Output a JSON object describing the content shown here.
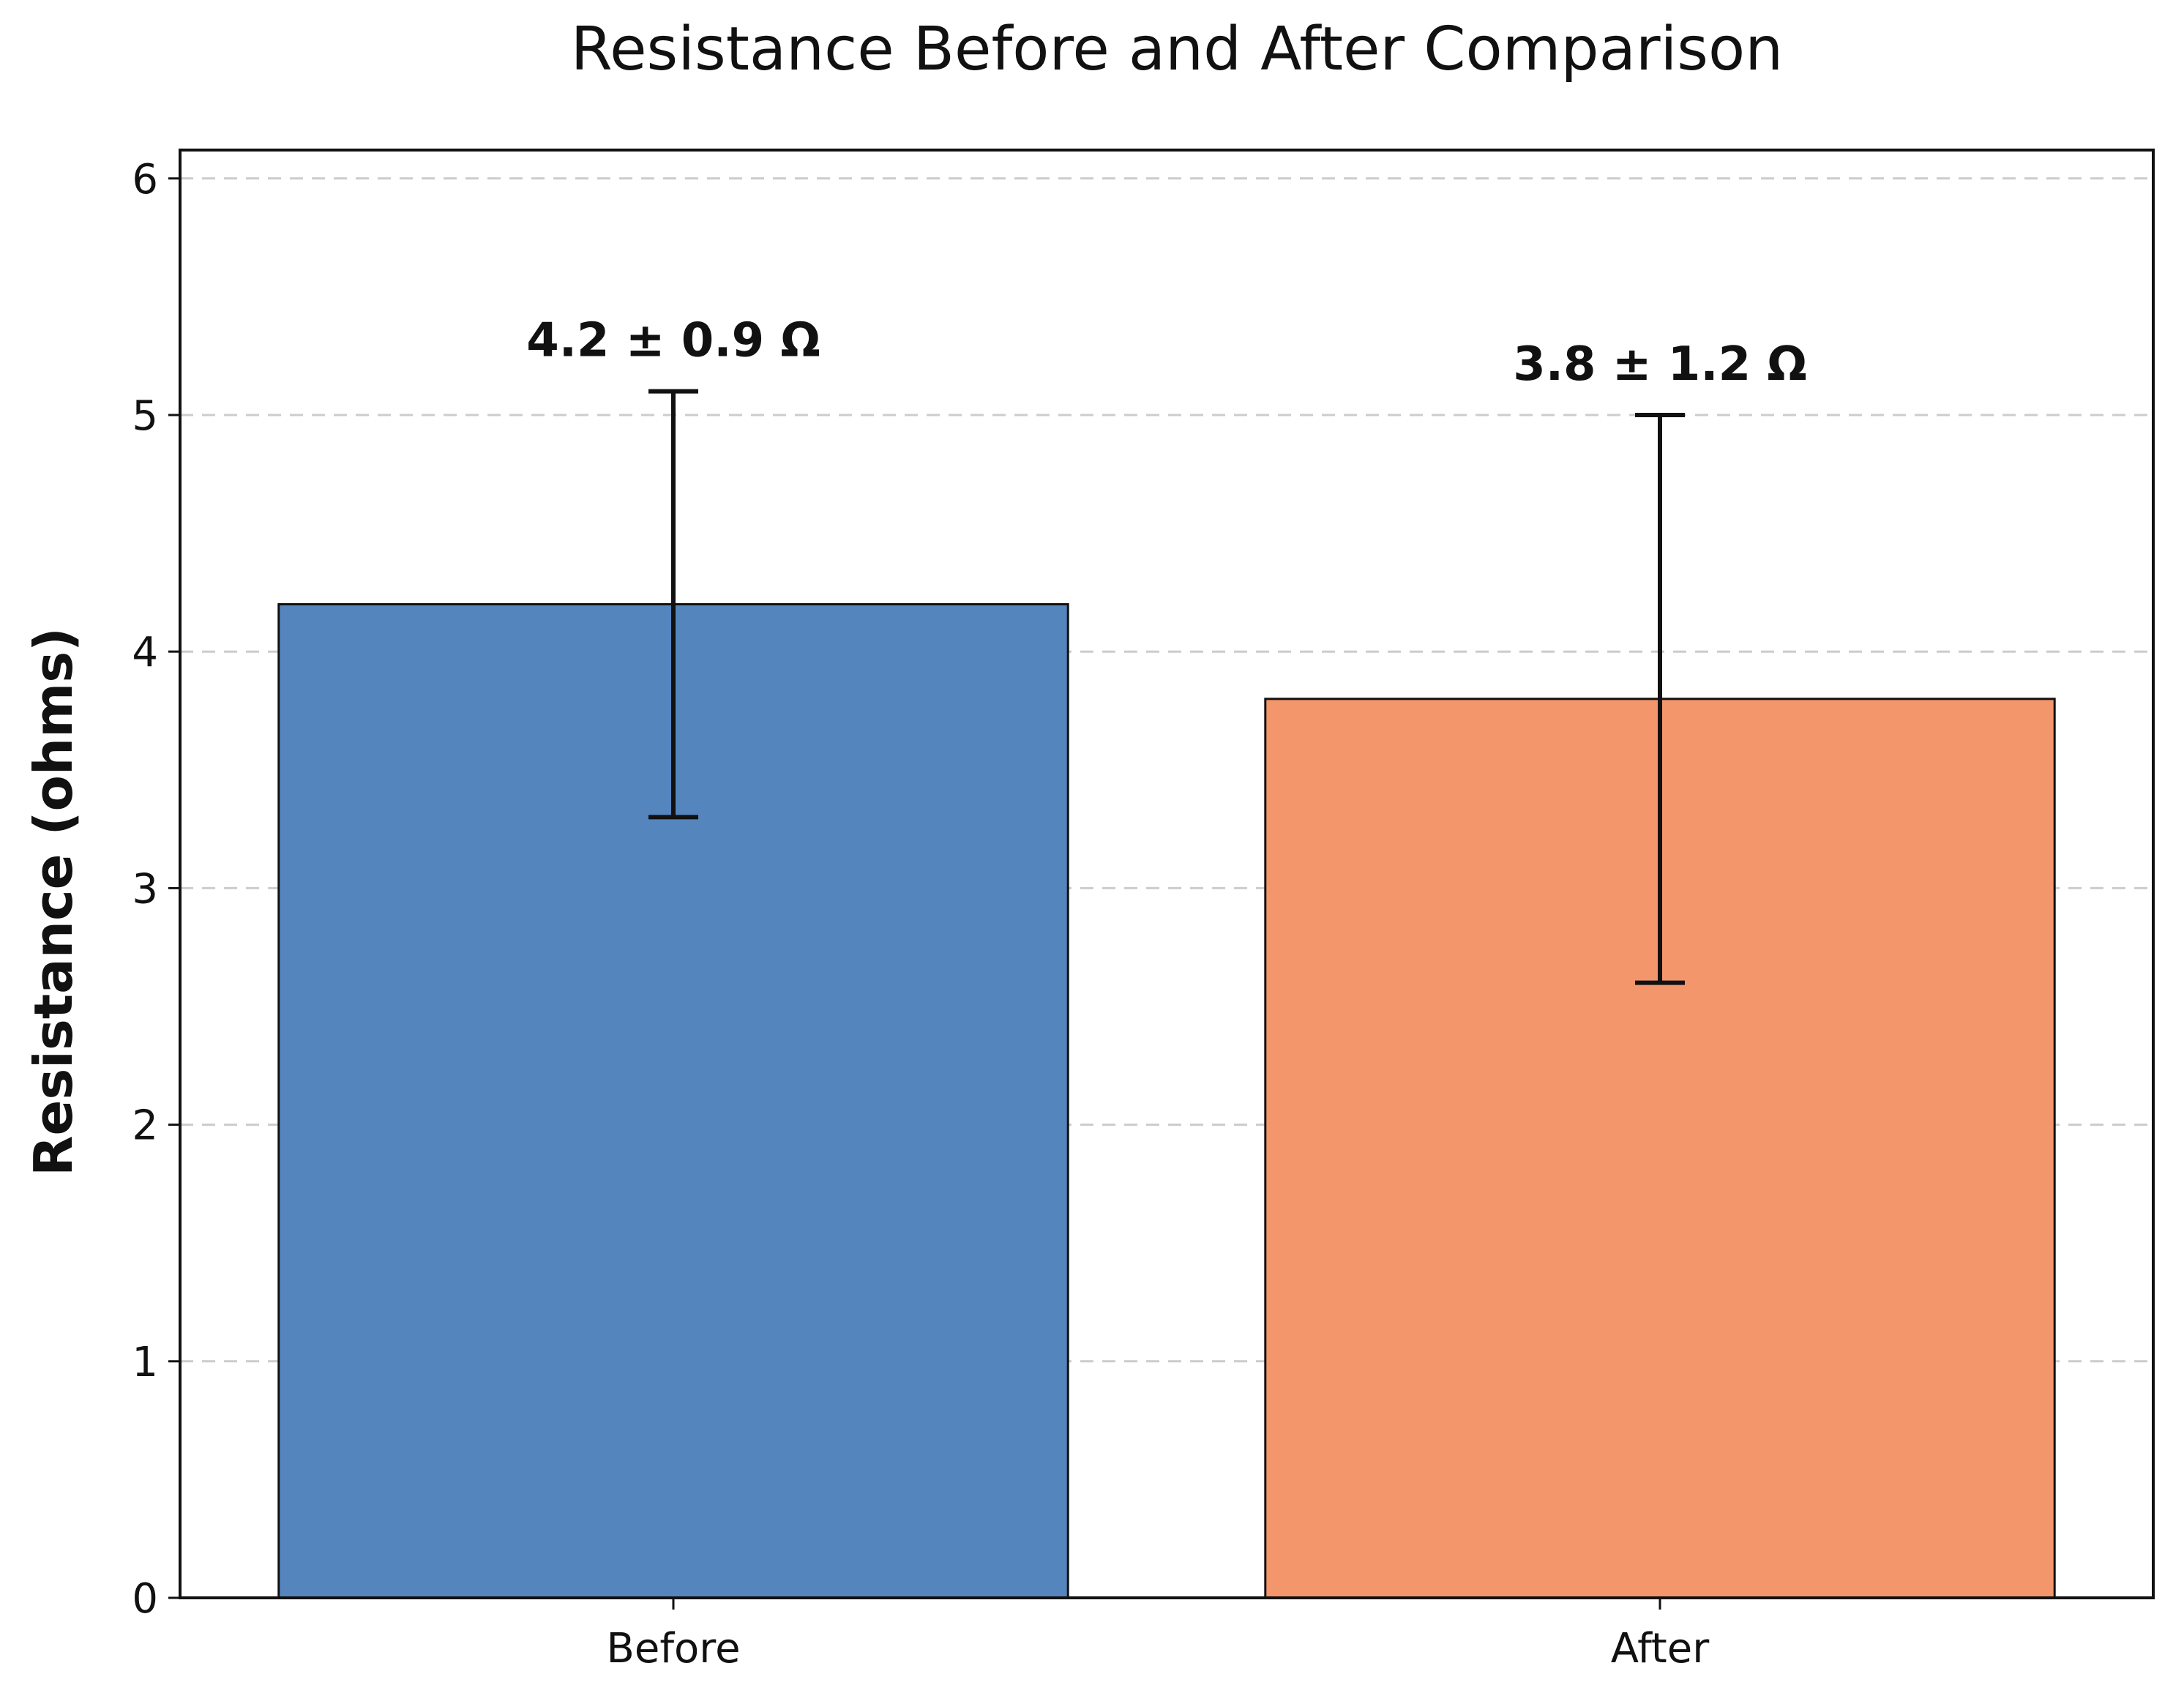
{
  "chart_data": {
    "type": "bar",
    "title": "Resistance Before and After Comparison",
    "xlabel": "",
    "ylabel": "Resistance (ohms)",
    "categories": [
      "Before",
      "After"
    ],
    "values": [
      4.2,
      3.8
    ],
    "errors": [
      0.9,
      1.2
    ],
    "data_labels": [
      "4.2 ± 0.9 Ω",
      "3.8 ± 1.2 Ω"
    ],
    "colors": [
      "#5585bd",
      "#f4966b"
    ],
    "ylim": [
      0,
      6.12
    ],
    "yticks": [
      0,
      1,
      2,
      3,
      4,
      5,
      6
    ],
    "grid": true,
    "grid_axis": "y",
    "grid_style": "dashed"
  }
}
